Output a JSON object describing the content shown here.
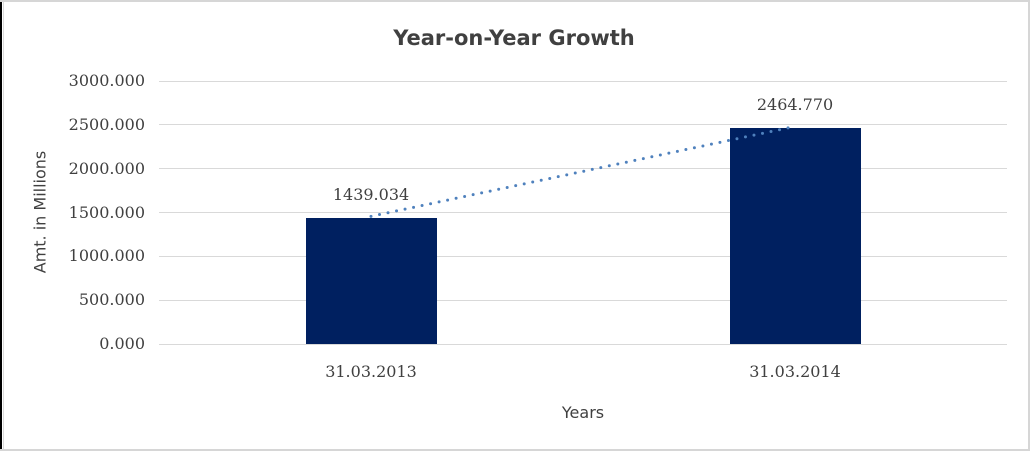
{
  "chart_data": {
    "type": "bar",
    "title": "Year-on-Year Growth",
    "xlabel": "Years",
    "ylabel": "Amt. in Millions",
    "categories": [
      "31.03.2013",
      "31.03.2014"
    ],
    "values": [
      1439.034,
      2464.77
    ],
    "data_labels": [
      "1439.034",
      "2464.770"
    ],
    "yticks": [
      "0.000",
      "500.000",
      "1000.000",
      "1500.000",
      "2000.000",
      "2500.000",
      "3000.000"
    ],
    "ylim": [
      0,
      3000
    ],
    "grid": "horizontal",
    "legend": "none",
    "bar_color": "#002060",
    "grid_color": "#d9d9d9",
    "text_color": "#404040",
    "trendline": {
      "type": "linear",
      "style": "dotted",
      "color": "#4f81bd"
    }
  }
}
